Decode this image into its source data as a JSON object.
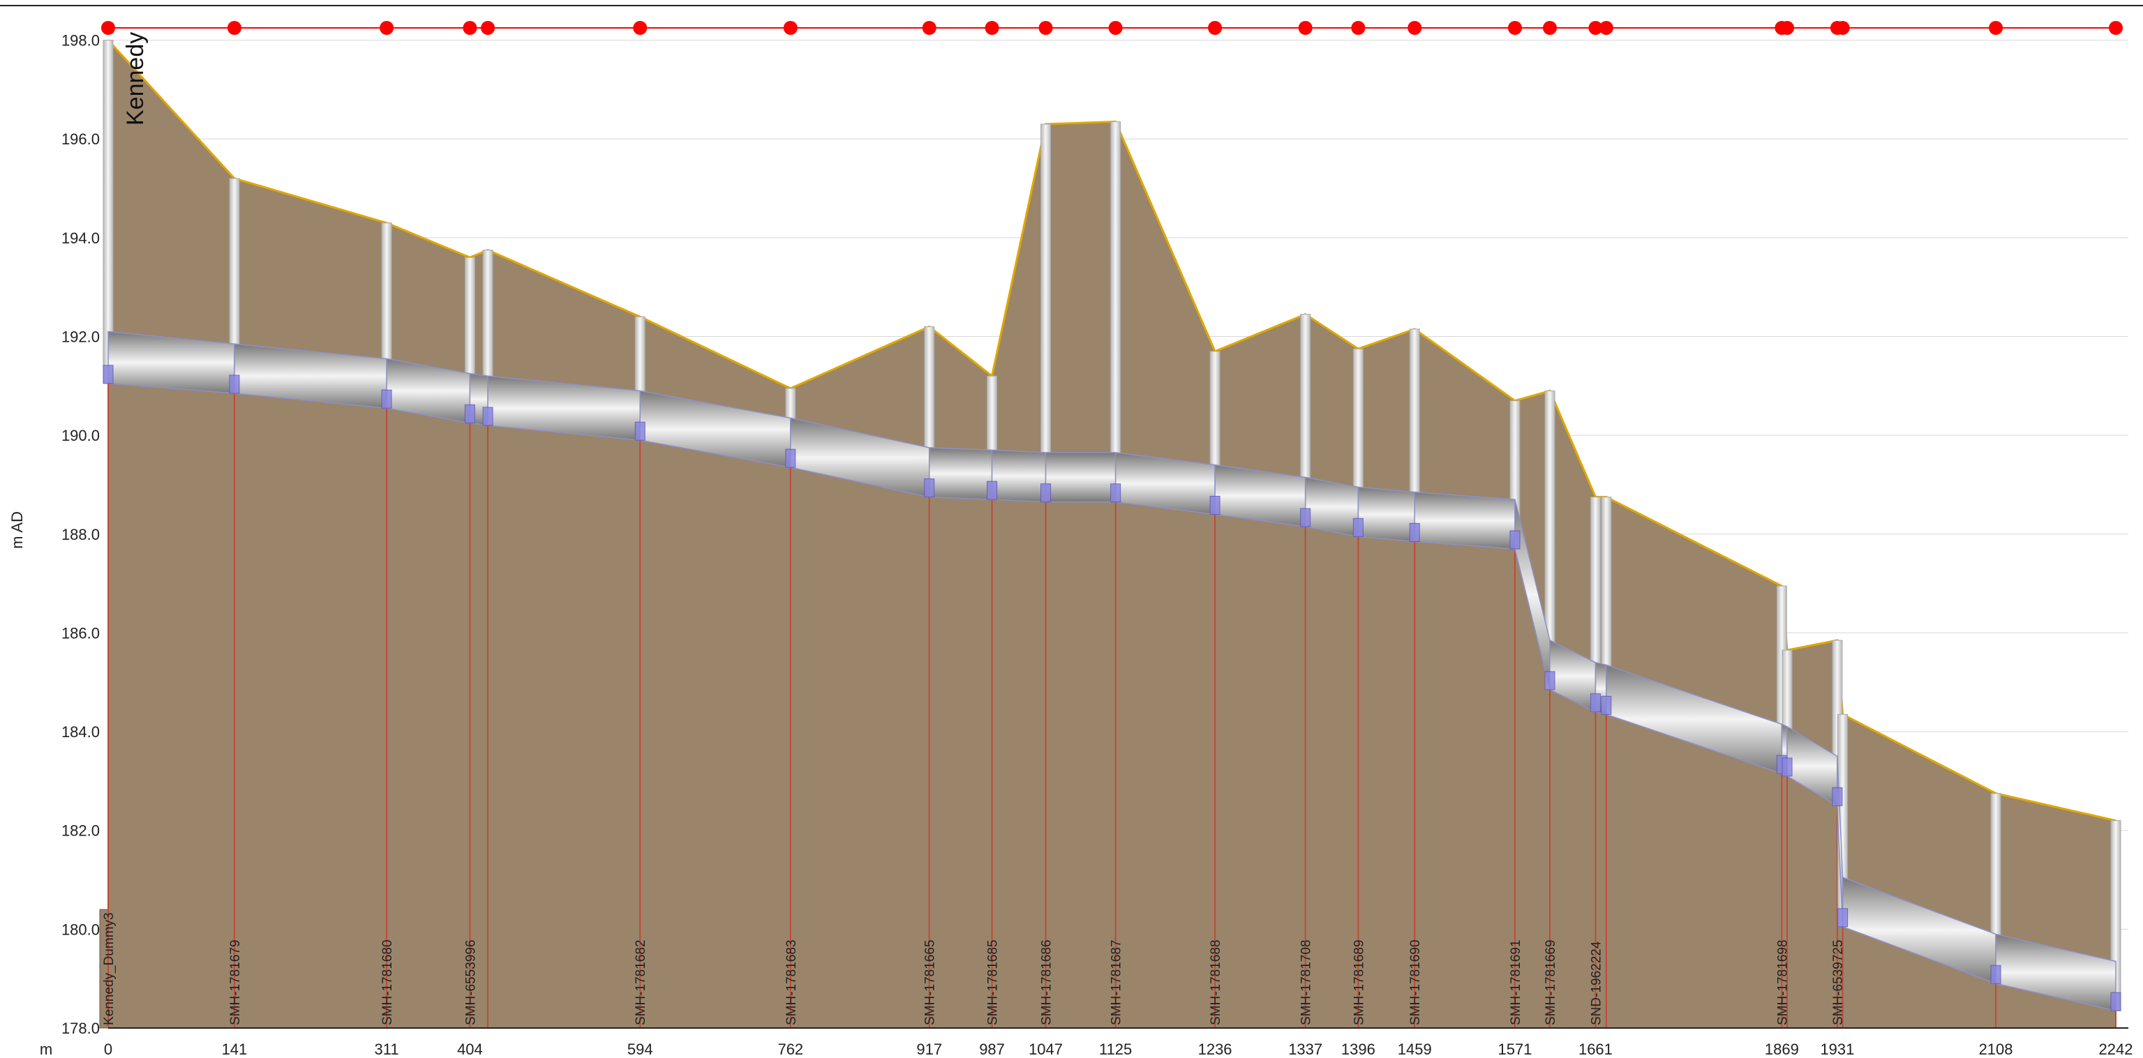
{
  "chart_data": {
    "type": "profile",
    "title_label": "Kennedy",
    "y_axis_label": "m AD",
    "x_axis_unit": "m",
    "ylim": [
      178.0,
      198.7
    ],
    "xlim": [
      0,
      2242
    ],
    "y_ticks": [
      "178.0",
      "180.0",
      "182.0",
      "184.0",
      "186.0",
      "188.0",
      "190.0",
      "192.0",
      "194.0",
      "196.0",
      "198.0"
    ],
    "y_tick_values": [
      178,
      180,
      182,
      184,
      186,
      188,
      190,
      192,
      194,
      196,
      198
    ],
    "grid": true,
    "colors": {
      "ground_fill": "#9a856b",
      "ground_line": "#e0a800",
      "pipe_dark": "#6a6a6a",
      "pipe_light": "#f2f2f2",
      "pipe_edge": "#8f8fc8",
      "manhole_shaft": "#e8e8e8",
      "invert_marker": "#8a86e0",
      "node_dot": "#ff0000",
      "drop_line": "#c0493a",
      "grid": "#d8d8d8"
    },
    "nodes": [
      {
        "x": 0,
        "label": "Kennedy_Dummy3",
        "tick": "0",
        "ground": 198.0,
        "invert": 191.05,
        "top": 192.1
      },
      {
        "x": 141,
        "label": "SMH-1781679",
        "tick": "141",
        "ground": 195.2,
        "invert": 190.85,
        "top": 191.85
      },
      {
        "x": 311,
        "label": "SMH-1781680",
        "tick": "311",
        "ground": 194.3,
        "invert": 190.55,
        "top": 191.55
      },
      {
        "x": 404,
        "label": "SMH-6553996",
        "tick": "404",
        "ground": 193.6,
        "invert": 190.25,
        "top": 191.25
      },
      {
        "x": 424,
        "label": "",
        "tick": "",
        "ground": 193.75,
        "invert": 190.2,
        "top": 191.2
      },
      {
        "x": 594,
        "label": "SMH-1781682",
        "tick": "594",
        "ground": 192.4,
        "invert": 189.9,
        "top": 190.9
      },
      {
        "x": 762,
        "label": "SMH-1781683",
        "tick": "762",
        "ground": 190.95,
        "invert": 189.35,
        "top": 190.35
      },
      {
        "x": 917,
        "label": "SMH-1781665",
        "tick": "917",
        "ground": 192.2,
        "invert": 188.75,
        "top": 189.75
      },
      {
        "x": 987,
        "label": "SMH-1781685",
        "tick": "987",
        "ground": 191.2,
        "invert": 188.7,
        "top": 189.7
      },
      {
        "x": 1047,
        "label": "SMH-1781686",
        "tick": "1047",
        "ground": 196.3,
        "invert": 188.65,
        "top": 189.65
      },
      {
        "x": 1125,
        "label": "SMH-1781687",
        "tick": "1125",
        "ground": 196.35,
        "invert": 188.65,
        "top": 189.65
      },
      {
        "x": 1236,
        "label": "SMH-1781688",
        "tick": "1236",
        "ground": 191.7,
        "invert": 188.4,
        "top": 189.4
      },
      {
        "x": 1337,
        "label": "SMH-1781708",
        "tick": "1337",
        "ground": 192.45,
        "invert": 188.15,
        "top": 189.15
      },
      {
        "x": 1396,
        "label": "SMH-1781689",
        "tick": "1396",
        "ground": 191.75,
        "invert": 187.95,
        "top": 188.95
      },
      {
        "x": 1459,
        "label": "SMH-1781690",
        "tick": "1459",
        "ground": 192.15,
        "invert": 187.85,
        "top": 188.85
      },
      {
        "x": 1571,
        "label": "SMH-1781691",
        "tick": "1571",
        "ground": 190.7,
        "invert": 187.7,
        "top": 188.7
      },
      {
        "x": 1610,
        "label": "SMH-1781669",
        "tick": "",
        "ground": 190.9,
        "invert": 184.85,
        "top": 185.85
      },
      {
        "x": 1661,
        "label": "SND-1962224",
        "tick": "1661",
        "ground": 188.75,
        "invert": 184.4,
        "top": 185.4
      },
      {
        "x": 1673,
        "label": "",
        "tick": "",
        "ground": 188.75,
        "invert": 184.35,
        "top": 185.35
      },
      {
        "x": 1869,
        "label": "SMH-1781698",
        "tick": "1869",
        "ground": 186.95,
        "invert": 183.15,
        "top": 184.15
      },
      {
        "x": 1875,
        "label": "",
        "tick": "",
        "ground": 185.65,
        "invert": 183.1,
        "top": 184.1
      },
      {
        "x": 1931,
        "label": "SMH-6539725",
        "tick": "1931",
        "ground": 185.85,
        "invert": 182.5,
        "top": 183.5
      },
      {
        "x": 1937,
        "label": "",
        "tick": "",
        "ground": 184.35,
        "invert": 180.05,
        "top": 181.05
      },
      {
        "x": 2108,
        "label": "",
        "tick": "2108",
        "ground": 182.75,
        "invert": 178.9,
        "top": 179.9
      },
      {
        "x": 2242,
        "label": "",
        "tick": "2242",
        "ground": 182.2,
        "invert": 178.35,
        "top": 179.35
      }
    ]
  }
}
